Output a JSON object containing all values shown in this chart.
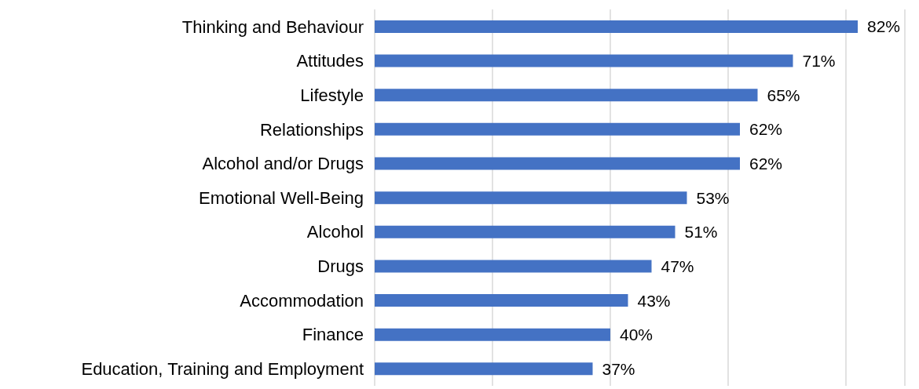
{
  "chart_data": {
    "type": "bar",
    "orientation": "horizontal",
    "categories": [
      "Thinking and Behaviour",
      "Attitudes",
      "Lifestyle",
      "Relationships",
      "Alcohol and/or Drugs",
      "Emotional Well-Being",
      "Alcohol",
      "Drugs",
      "Accommodation",
      "Finance",
      "Education, Training and Employment"
    ],
    "values": [
      82,
      71,
      65,
      62,
      62,
      53,
      51,
      47,
      43,
      40,
      37
    ],
    "value_labels": [
      "82%",
      "71%",
      "65%",
      "62%",
      "62%",
      "53%",
      "51%",
      "47%",
      "43%",
      "40%",
      "37%"
    ],
    "color": "#4472c4",
    "xlim": [
      0,
      90
    ],
    "xticks": [
      {
        "value": 0,
        "label": null
      },
      {
        "value": 20,
        "label": null
      },
      {
        "value": 40,
        "label": null
      },
      {
        "value": 60,
        "label": null
      },
      {
        "value": 80,
        "label": null
      }
    ],
    "grid": "x",
    "tick_labels": "y"
  }
}
